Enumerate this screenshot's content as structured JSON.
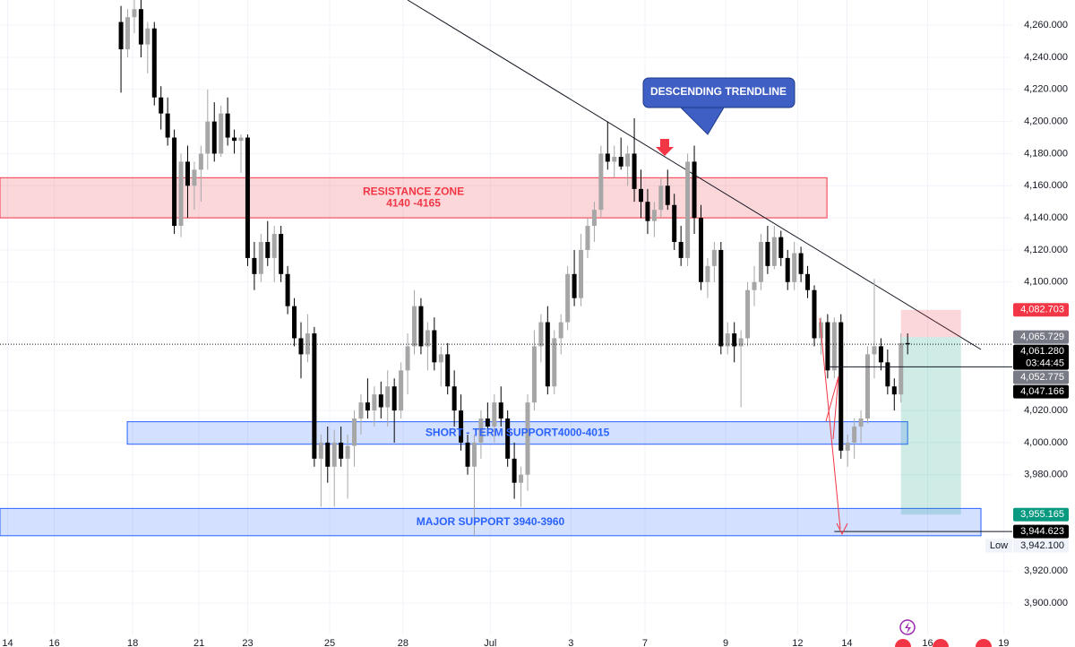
{
  "chart_data": {
    "type": "candlestick",
    "candles": [
      [
        4262,
        4272,
        4218,
        4245
      ],
      [
        4245,
        4270,
        4240,
        4265
      ],
      [
        4265,
        4276,
        4255,
        4270
      ],
      [
        4270,
        4276,
        4240,
        4248
      ],
      [
        4248,
        4262,
        4230,
        4258
      ],
      [
        4258,
        4262,
        4210,
        4215
      ],
      [
        4215,
        4222,
        4195,
        4205
      ],
      [
        4205,
        4215,
        4185,
        4190
      ],
      [
        4190,
        4195,
        4130,
        4135
      ],
      [
        4135,
        4180,
        4128,
        4175
      ],
      [
        4175,
        4185,
        4140,
        4160
      ],
      [
        4160,
        4175,
        4145,
        4170
      ],
      [
        4170,
        4185,
        4150,
        4180
      ],
      [
        4180,
        4220,
        4170,
        4200
      ],
      [
        4200,
        4212,
        4175,
        4180
      ],
      [
        4180,
        4210,
        4178,
        4205
      ],
      [
        4205,
        4215,
        4185,
        4190
      ],
      [
        4190,
        4195,
        4180,
        4188
      ],
      [
        4188,
        4192,
        4168,
        4190
      ],
      [
        4190,
        4192,
        4110,
        4115
      ],
      [
        4115,
        4125,
        4095,
        4105
      ],
      [
        4105,
        4130,
        4100,
        4125
      ],
      [
        4125,
        4138,
        4110,
        4115
      ],
      [
        4115,
        4135,
        4100,
        4130
      ],
      [
        4130,
        4135,
        4100,
        4105
      ],
      [
        4105,
        4110,
        4080,
        4085
      ],
      [
        4085,
        4090,
        4060,
        4065
      ],
      [
        4065,
        4075,
        4040,
        4055
      ],
      [
        4055,
        4080,
        4050,
        4068
      ],
      [
        4068,
        4072,
        3985,
        3990
      ],
      [
        3990,
        4005,
        3960,
        4000
      ],
      [
        4000,
        4010,
        3975,
        3985
      ],
      [
        3985,
        4008,
        3960,
        4000
      ],
      [
        4000,
        4010,
        3985,
        3990
      ],
      [
        3990,
        4005,
        3965,
        3998
      ],
      [
        3998,
        4020,
        3985,
        4015
      ],
      [
        4015,
        4030,
        4005,
        4025
      ],
      [
        4025,
        4040,
        4015,
        4020
      ],
      [
        4020,
        4035,
        4010,
        4030
      ],
      [
        4030,
        4038,
        4015,
        4022
      ],
      [
        4022,
        4045,
        4010,
        4035
      ],
      [
        4035,
        4040,
        4000,
        4020
      ],
      [
        4020,
        4050,
        4015,
        4045
      ],
      [
        4045,
        4068,
        4030,
        4060
      ],
      [
        4060,
        4095,
        4055,
        4085
      ],
      [
        4085,
        4090,
        4055,
        4060
      ],
      [
        4060,
        4075,
        4045,
        4070
      ],
      [
        4070,
        4078,
        4045,
        4050
      ],
      [
        4050,
        4060,
        4035,
        4055
      ],
      [
        4055,
        4062,
        4030,
        4035
      ],
      [
        4035,
        4045,
        4010,
        4020
      ],
      [
        4020,
        4030,
        3995,
        4000
      ],
      [
        4000,
        4005,
        3980,
        3985
      ],
      [
        3985,
        4005,
        3942,
        4000
      ],
      [
        4000,
        4020,
        3990,
        4015
      ],
      [
        4015,
        4025,
        4005,
        4010
      ],
      [
        4010,
        4030,
        4000,
        4025
      ],
      [
        4025,
        4035,
        4010,
        4015
      ],
      [
        4015,
        4020,
        3985,
        3990
      ],
      [
        3990,
        4000,
        3965,
        3975
      ],
      [
        3975,
        3985,
        3960,
        3980
      ],
      [
        3980,
        4030,
        3970,
        4025
      ],
      [
        4025,
        4070,
        4020,
        4060
      ],
      [
        4060,
        4080,
        4050,
        4075
      ],
      [
        4075,
        4085,
        4030,
        4035
      ],
      [
        4035,
        4070,
        4030,
        4065
      ],
      [
        4065,
        4080,
        4055,
        4075
      ],
      [
        4075,
        4110,
        4070,
        4105
      ],
      [
        4105,
        4120,
        4085,
        4090
      ],
      [
        4090,
        4130,
        4085,
        4120
      ],
      [
        4120,
        4140,
        4115,
        4135
      ],
      [
        4135,
        4150,
        4125,
        4145
      ],
      [
        4145,
        4185,
        4140,
        4180
      ],
      [
        4180,
        4200,
        4170,
        4175
      ],
      [
        4175,
        4185,
        4165,
        4178
      ],
      [
        4178,
        4190,
        4170,
        4172
      ],
      [
        4172,
        4185,
        4160,
        4180
      ],
      [
        4180,
        4202,
        4150,
        4158
      ],
      [
        4158,
        4170,
        4140,
        4150
      ],
      [
        4150,
        4158,
        4130,
        4138
      ],
      [
        4138,
        4150,
        4128,
        4145
      ],
      [
        4145,
        4165,
        4140,
        4160
      ],
      [
        4160,
        4170,
        4145,
        4148
      ],
      [
        4148,
        4155,
        4120,
        4125
      ],
      [
        4125,
        4135,
        4110,
        4115
      ],
      [
        4115,
        4180,
        4110,
        4175
      ],
      [
        4175,
        4185,
        4130,
        4140
      ],
      [
        4140,
        4148,
        4095,
        4100
      ],
      [
        4100,
        4115,
        4090,
        4110
      ],
      [
        4110,
        4125,
        4100,
        4120
      ],
      [
        4120,
        4125,
        4055,
        4060
      ],
      [
        4060,
        4075,
        4055,
        4068
      ],
      [
        4068,
        4075,
        4050,
        4060
      ],
      [
        4060,
        4070,
        4022,
        4065
      ],
      [
        4065,
        4100,
        4060,
        4095
      ],
      [
        4095,
        4110,
        4085,
        4100
      ],
      [
        4100,
        4130,
        4095,
        4125
      ],
      [
        4125,
        4135,
        4105,
        4110
      ],
      [
        4110,
        4135,
        4108,
        4128
      ],
      [
        4128,
        4132,
        4110,
        4115
      ],
      [
        4115,
        4120,
        4095,
        4100
      ],
      [
        4100,
        4125,
        4095,
        4118
      ],
      [
        4118,
        4122,
        4100,
        4105
      ],
      [
        4105,
        4110,
        4090,
        4095
      ],
      [
        4095,
        4098,
        4060,
        4065
      ],
      [
        4065,
        4078,
        4055,
        4075
      ],
      [
        4075,
        4080,
        4040,
        4045
      ],
      [
        4045,
        4078,
        4040,
        4075
      ],
      [
        4075,
        4080,
        3990,
        3995
      ],
      [
        3995,
        4005,
        3985,
        4000
      ],
      [
        4000,
        4015,
        3990,
        4010
      ],
      [
        4010,
        4020,
        4000,
        4015
      ],
      [
        4015,
        4060,
        4012,
        4055
      ],
      [
        4055,
        4102,
        4040,
        4060
      ],
      [
        4060,
        4065,
        4045,
        4050
      ],
      [
        4050,
        4058,
        4030,
        4035
      ],
      [
        4035,
        4040,
        4020,
        4030
      ],
      [
        4030,
        4068,
        4025,
        4062
      ],
      [
        4062,
        4068,
        4055,
        4061.28
      ]
    ],
    "up_color": "#a6a6a6",
    "down_color": "#000000",
    "xlim": [
      -18.15,
      133.7
    ],
    "xticks": [
      {
        "value": -17,
        "label": "14"
      },
      {
        "value": -10,
        "label": "16"
      },
      {
        "value": 1.75,
        "label": "18"
      },
      {
        "value": 11.7,
        "label": "21"
      },
      {
        "value": 19,
        "label": "23"
      },
      {
        "value": 31.3,
        "label": "25"
      },
      {
        "value": 42.3,
        "label": "28"
      },
      {
        "value": 55.4,
        "label": "Jul"
      },
      {
        "value": 67.5,
        "label": "3"
      },
      {
        "value": 78.6,
        "label": "7"
      },
      {
        "value": 90.7,
        "label": "9"
      },
      {
        "value": 101.5,
        "label": "12"
      },
      {
        "value": 108.9,
        "label": "14"
      },
      {
        "value": 121,
        "label": "16"
      },
      {
        "value": 132.4,
        "label": "19"
      }
    ],
    "ylim": [
      3880.5,
      4275.7
    ],
    "yticks": [
      {
        "value": 4260,
        "label": "4,260.000"
      },
      {
        "value": 4240,
        "label": "4,240.000"
      },
      {
        "value": 4220,
        "label": "4,220.000"
      },
      {
        "value": 4200,
        "label": "4,200.000"
      },
      {
        "value": 4180,
        "label": "4,180.000"
      },
      {
        "value": 4160,
        "label": "4,160.000"
      },
      {
        "value": 4140,
        "label": "4,140.000"
      },
      {
        "value": 4120,
        "label": "4,120.000"
      },
      {
        "value": 4100,
        "label": "4,100.000"
      },
      {
        "value": 4020,
        "label": "4,020.000"
      },
      {
        "value": 4000,
        "label": "4,000.000"
      },
      {
        "value": 3980,
        "label": "3,980.000"
      },
      {
        "value": 3920,
        "label": "3,920.000"
      },
      {
        "value": 3900,
        "label": "3,900.000"
      }
    ],
    "grid": true,
    "zones": [
      {
        "lines": [
          "RESISTANCE ZONE",
          "4140 -4165"
        ],
        "low": 4140,
        "high": 4165,
        "x": [
          -18.15,
          105.9
        ],
        "color": "#f23645"
      },
      {
        "lines": [
          "SHORT - TERM SUPPORT4000-4015"
        ],
        "low": 3999,
        "high": 4013,
        "x": [
          0.94,
          118
        ],
        "color": "#2962ff"
      },
      {
        "lines": [
          "MAJOR SUPPORT 3940-3960"
        ],
        "low": 3942,
        "high": 3959,
        "x": [
          -18.15,
          129
        ],
        "color": "#2962ff"
      }
    ],
    "trendline": {
      "x": [
        43,
        129
      ],
      "y": [
        4275.7,
        4058
      ]
    },
    "annotation": "DESCENDING TRENDLINE",
    "position": {
      "x": [
        117,
        126
      ],
      "stop": 4082.703,
      "entry": 4065.729,
      "target": 3955.165
    },
    "hlines": [
      {
        "value": 4061.28,
        "style": "dotted",
        "x0": -18.15
      },
      {
        "value": 4047.166,
        "style": "solid",
        "x0": 106
      },
      {
        "value": 3944.623,
        "style": "solid",
        "x0": 107
      }
    ],
    "price_labels": [
      {
        "value": 4082.703,
        "label": "4,082.703",
        "color": "#f23645"
      },
      {
        "value": 4065.729,
        "label": "4,065.729",
        "color": "#787b86"
      },
      {
        "value": 4061.28,
        "label": "4,061.280",
        "sub": "03:44:45",
        "color": "#000000"
      },
      {
        "value": 4052.775,
        "label": "4,052.775",
        "color": "#787b86"
      },
      {
        "value": 4047.166,
        "label": "4,047.166",
        "color": "#000000"
      },
      {
        "value": 3955.165,
        "label": "3,955.165",
        "color": "#089981"
      },
      {
        "value": 3944.623,
        "label": "3,944.623",
        "color": "#000000"
      }
    ],
    "low_label": {
      "name": "Low",
      "value": 3942.1,
      "label": "3,942.100"
    }
  }
}
